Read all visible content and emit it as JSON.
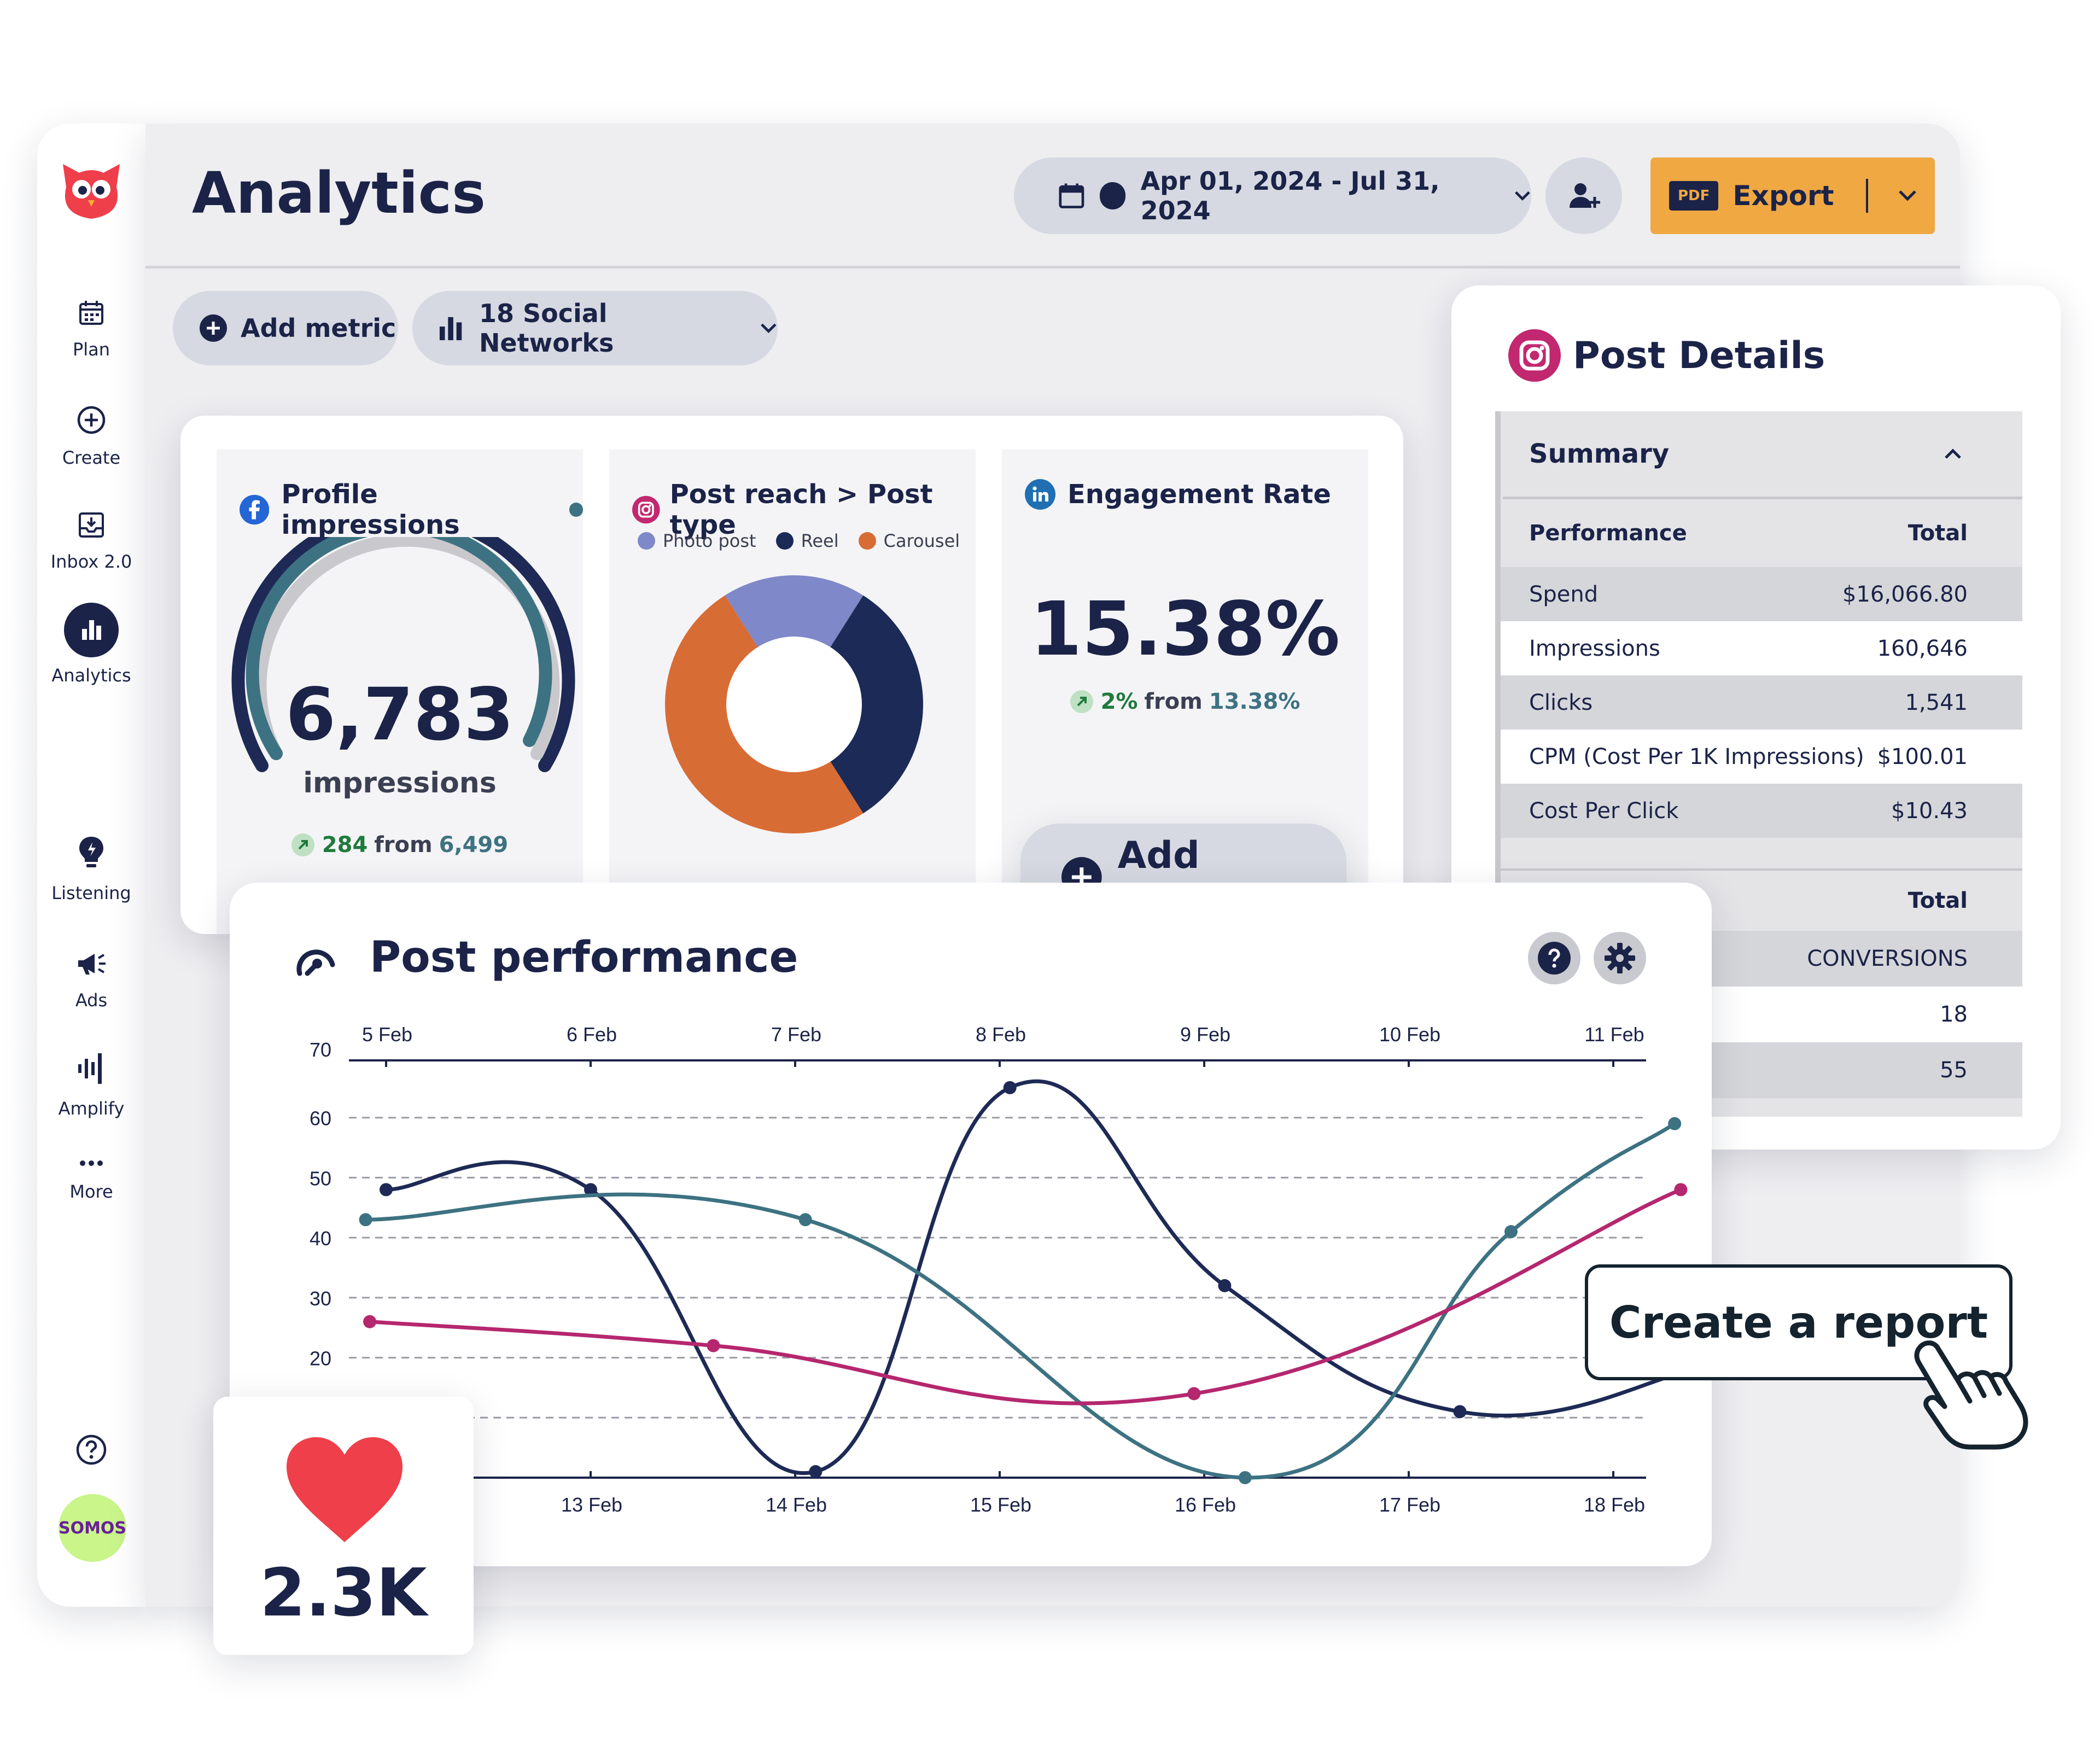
{
  "sidebar": {
    "items": [
      {
        "label": "Plan",
        "icon": "calendar-icon"
      },
      {
        "label": "Create",
        "icon": "plus-circle-icon"
      },
      {
        "label": "Inbox 2.0",
        "icon": "inbox-icon"
      },
      {
        "label": "Analytics",
        "icon": "bar-chart-icon"
      },
      {
        "label": "Listening",
        "icon": "lightbulb-icon"
      },
      {
        "label": "Ads",
        "icon": "megaphone-icon"
      },
      {
        "label": "Amplify",
        "icon": "amplify-icon"
      },
      {
        "label": "More",
        "icon": "more-dots-icon"
      }
    ],
    "help_icon": "help-icon",
    "avatar_label": "SOMOS"
  },
  "header": {
    "title": "Analytics",
    "date_range": "Apr 01, 2024 - Jul 31, 2024",
    "export_badge": "PDF",
    "export_label": "Export"
  },
  "toolbar": {
    "add_metric": "Add metric",
    "networks": "18 Social Networks"
  },
  "cards": {
    "impressions": {
      "title": "Profile impressions",
      "value": "6,783",
      "unit": "impressions",
      "change": "284",
      "from_word": "from",
      "previous": "6,499"
    },
    "post_reach": {
      "title": "Post reach > Post type",
      "legend": [
        "Photo post",
        "Reel",
        "Carousel"
      ],
      "colors": [
        "#7f88c8",
        "#1b2a56",
        "#d86c35"
      ],
      "shares": [
        0.18,
        0.32,
        0.5
      ]
    },
    "engagement": {
      "title": "Engagement Rate",
      "value": "15.38%",
      "change": "2%",
      "from_word": "from",
      "previous": "13.38%"
    },
    "add_metric": "Add metric"
  },
  "post_details": {
    "title": "Post Details",
    "summary": "Summary",
    "header_left": "Performance",
    "header_right": "Total",
    "rows": [
      {
        "label": "Spend",
        "value": "$16,066.80"
      },
      {
        "label": "Impressions",
        "value": "160,646"
      },
      {
        "label": "Clicks",
        "value": "1,541"
      },
      {
        "label": "CPM (Cost Per 1K Impressions)",
        "value": "$100.01"
      },
      {
        "label": "Cost Per Click",
        "value": "$10.43"
      }
    ],
    "header2_right": "Total",
    "conversions_label": "CONVERSIONS",
    "conv_values": [
      "18",
      "55"
    ]
  },
  "post_performance": {
    "title": "Post performance",
    "help_icon": "help-icon",
    "settings_icon": "gear-icon"
  },
  "chart_data": {
    "type": "line",
    "top_axis_labels": [
      "5 Feb",
      "6 Feb",
      "7 Feb",
      "8 Feb",
      "9 Feb",
      "10 Feb",
      "11 Feb"
    ],
    "bottom_axis_labels": [
      "13 Feb",
      "14 Feb",
      "15 Feb",
      "16 Feb",
      "17 Feb",
      "18 Feb"
    ],
    "y_ticks": [
      70,
      60,
      50,
      40,
      30,
      20
    ],
    "ylim": [
      0,
      70
    ],
    "grid": "dashed horizontal",
    "series": [
      {
        "color": "#1e2a55",
        "points": [
          [
            0,
            48
          ],
          [
            1,
            48
          ],
          [
            2.1,
            1
          ],
          [
            3.05,
            65
          ],
          [
            4.1,
            32
          ],
          [
            5.25,
            11
          ],
          [
            6.4,
            18
          ]
        ]
      },
      {
        "color": "#3d7282",
        "points": [
          [
            -0.1,
            43
          ],
          [
            2.05,
            43
          ],
          [
            4.2,
            0
          ],
          [
            5.5,
            41
          ],
          [
            6.3,
            59
          ]
        ]
      },
      {
        "color": "#b5276e",
        "points": [
          [
            -0.08,
            26
          ],
          [
            1.6,
            22
          ],
          [
            3.95,
            14
          ],
          [
            6.33,
            48
          ]
        ]
      }
    ]
  },
  "likes": {
    "value": "2.3K",
    "icon": "heart-icon"
  },
  "cta": {
    "label": "Create a report",
    "icon": "pointing-hand-icon"
  }
}
